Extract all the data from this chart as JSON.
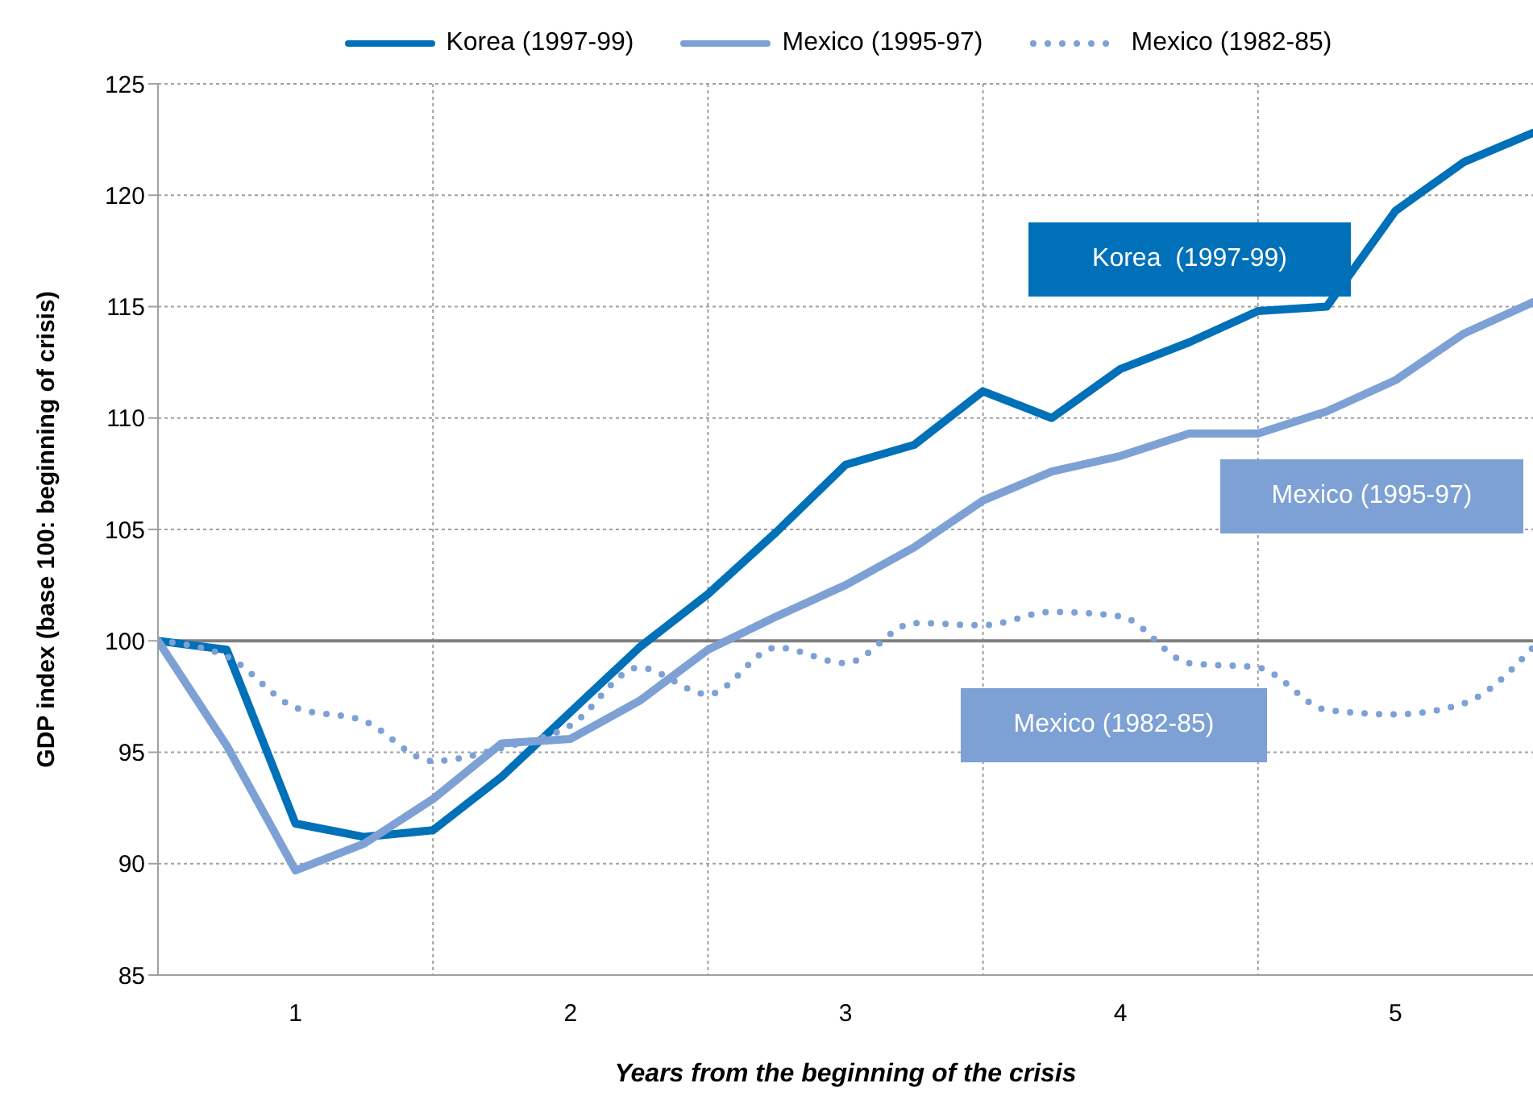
{
  "chart_data": {
    "type": "line",
    "xlabel": "Years from the beginning of the crisis",
    "ylabel": "GDP index (base 100: beginning of crisis)",
    "categories": [
      null,
      null,
      "1",
      null,
      null,
      null,
      "2",
      null,
      null,
      null,
      "3",
      null,
      null,
      null,
      "4",
      null,
      null,
      null,
      "5",
      null,
      null
    ],
    "series": [
      {
        "name": "Korea (1997-99)",
        "color": "#0070b8",
        "line_style": "solid",
        "values": [
          100,
          99.6,
          91.8,
          91.2,
          91.5,
          93.9,
          96.8,
          99.7,
          102.1,
          104.9,
          107.9,
          108.8,
          111.2,
          110.0,
          112.2,
          113.4,
          114.8,
          115.0,
          119.3,
          121.5,
          122.8
        ]
      },
      {
        "name": "Mexico (1995-97)",
        "color": "#7da1d4",
        "line_style": "solid",
        "values": [
          100,
          95.3,
          89.7,
          90.9,
          92.9,
          95.4,
          95.6,
          97.3,
          99.6,
          101.1,
          102.5,
          104.2,
          106.3,
          107.6,
          108.3,
          109.3,
          109.3,
          110.3,
          111.7,
          113.8,
          115.2
        ]
      },
      {
        "name": "Mexico (1982-85)",
        "color": "#7da1d4",
        "line_style": "dotted",
        "values": [
          100,
          99.3,
          97.0,
          96.4,
          94.6,
          95.2,
          96.2,
          98.8,
          97.6,
          99.7,
          99.0,
          100.8,
          100.7,
          101.3,
          101.1,
          99.0,
          98.8,
          96.9,
          96.7,
          97.2,
          99.7
        ]
      }
    ],
    "ylim": [
      85,
      125
    ],
    "yticks": [
      85,
      90,
      95,
      100,
      105,
      110,
      115,
      120,
      125
    ],
    "grid": true,
    "legend": "top",
    "marker": "none",
    "ref_lines": [
      {
        "axis": "y",
        "value": 100,
        "color": "#808080"
      }
    ],
    "annotations": [
      "Korea  (1997-99)",
      "Mexico (1995-97)",
      "Mexico (1982-85)"
    ]
  }
}
